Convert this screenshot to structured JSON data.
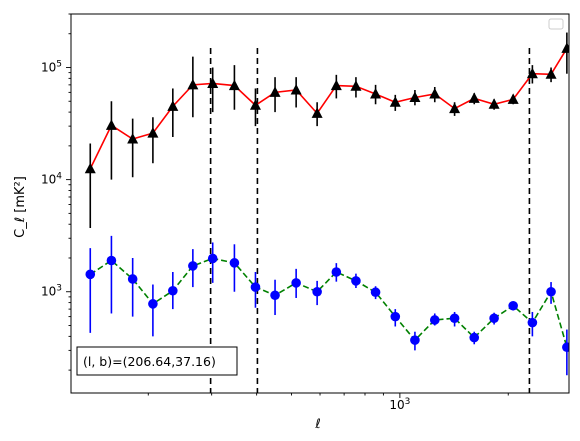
{
  "chart_data": {
    "type": "scatter",
    "title": "",
    "xlabel": "ℓ",
    "ylabel": "C_ℓ  [mK²]",
    "xscale": "log",
    "yscale": "log",
    "xlim": [
      122,
      2950
    ],
    "ylim": [
      125,
      300000
    ],
    "xticks": [
      {
        "value": 1000,
        "label": "10",
        "sup": "3"
      }
    ],
    "yticks": [
      {
        "value": 1000,
        "label": "10",
        "sup": "3"
      },
      {
        "value": 10000,
        "label": "10",
        "sup": "4"
      },
      {
        "value": 100000,
        "label": "10",
        "sup": "5"
      }
    ],
    "vlines": [
      298,
      402,
      2290
    ],
    "annotation": "(l, b)=(206.64,37.16)",
    "legend": {
      "location": "top-right",
      "entries": []
    },
    "grid": false,
    "colors": {
      "upper_marker": "#000000",
      "upper_line": "#ff0000",
      "lower_marker": "#0000ff",
      "lower_line": "#008000"
    },
    "x": [
      138,
      158,
      181,
      206,
      234,
      266,
      302,
      347,
      397,
      450,
      515,
      589,
      666,
      755,
      856,
      971,
      1101,
      1250,
      1419,
      1609,
      1827,
      2064,
      2334,
      2630,
      2910
    ],
    "series": [
      {
        "marker": "triangle",
        "line": "solid",
        "values": [
          12500,
          30500,
          23000,
          26000,
          45000,
          70000,
          72000,
          69000,
          46000,
          60000,
          63000,
          39000,
          69000,
          68000,
          58000,
          49000,
          54000,
          58000,
          43000,
          53000,
          47000,
          52000,
          88000,
          87000,
          148000
        ],
        "err_low": [
          3700,
          10000,
          10500,
          14000,
          24000,
          36000,
          40000,
          42000,
          30000,
          40000,
          44000,
          30000,
          53000,
          54000,
          47000,
          41000,
          46000,
          49000,
          37000,
          47000,
          42000,
          47000,
          72000,
          74000,
          88000
        ],
        "err_high": [
          21000,
          50000,
          35000,
          36000,
          65000,
          125000,
          100000,
          105000,
          65000,
          82000,
          82000,
          49000,
          86000,
          82000,
          70000,
          57000,
          63000,
          67000,
          49000,
          59000,
          52000,
          57000,
          105000,
          100000,
          205000
        ]
      },
      {
        "marker": "circle",
        "line": "dashed",
        "values": [
          1430,
          1900,
          1300,
          780,
          1020,
          1700,
          1980,
          1810,
          1100,
          930,
          1200,
          1000,
          1500,
          1250,
          990,
          600,
          370,
          560,
          580,
          390,
          580,
          750,
          530,
          1000,
          320
        ],
        "err_low": [
          430,
          640,
          600,
          400,
          700,
          1100,
          1200,
          1000,
          720,
          620,
          880,
          760,
          1230,
          1080,
          860,
          490,
          300,
          500,
          490,
          340,
          510,
          680,
          400,
          780,
          180
        ],
        "err_high": [
          2450,
          3150,
          2000,
          1160,
          1500,
          2400,
          2750,
          2650,
          1500,
          1280,
          1600,
          1250,
          1800,
          1450,
          1120,
          700,
          440,
          640,
          660,
          440,
          650,
          820,
          660,
          1220,
          460
        ]
      }
    ]
  }
}
